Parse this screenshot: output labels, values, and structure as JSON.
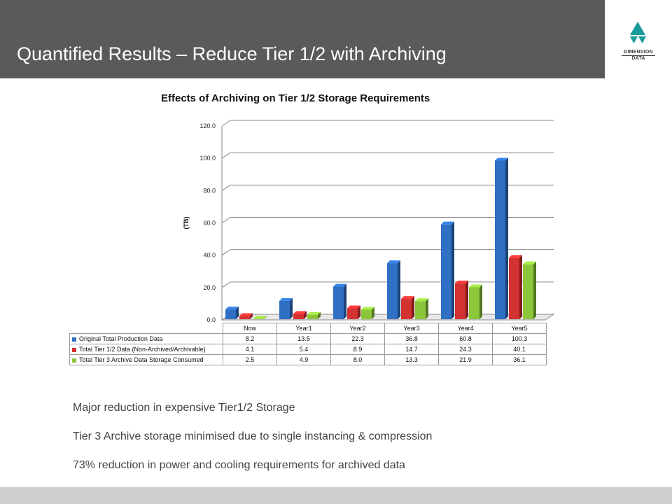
{
  "slide": {
    "title": "Quantified Results – Reduce Tier 1/2 with Archiving",
    "logo": {
      "line1": "DIMENSION",
      "line2": "DATA"
    },
    "bullets": [
      "Major reduction in expensive Tier1/2 Storage",
      "Tier 3 Archive storage minimised due to single instancing & compression",
      "73% reduction in power and cooling requirements for archived data"
    ]
  },
  "chart_data": {
    "type": "bar",
    "title": "Effects of Archiving on Tier 1/2 Storage Requirements",
    "ylabel": "(TB)",
    "xlabel": "",
    "ylim": [
      0,
      120
    ],
    "yticks": [
      "0.0",
      "20.0",
      "40.0",
      "60.0",
      "80.0",
      "100.0",
      "120.0"
    ],
    "grid": true,
    "legend": "data table below chart",
    "categories": [
      "Now",
      "Year1",
      "Year2",
      "Year3",
      "Year4",
      "Year5"
    ],
    "series": [
      {
        "name": "Original Total Production Data",
        "color": "#2f6fc4",
        "values": [
          8.2,
          13.5,
          22.3,
          36.8,
          60.8,
          100.3
        ],
        "labels": [
          "8.2",
          "13.5",
          "22.3",
          "36.8",
          "60.8",
          "100.3"
        ]
      },
      {
        "name": "Total Tier 1/2 Data (Non-Archived/Archivable)",
        "color": "#d43131",
        "values": [
          4.1,
          5.4,
          8.9,
          14.7,
          24.3,
          40.1
        ],
        "labels": [
          "4.1",
          "5.4",
          "8.9",
          "14.7",
          "24.3",
          "40.1"
        ]
      },
      {
        "name": "Total Tier 3 Archive Data Storage Consumed",
        "color": "#8cc63a",
        "values": [
          2.5,
          4.9,
          8.0,
          13.3,
          21.9,
          36.1
        ],
        "labels": [
          "2.5",
          "4.9",
          "8.0",
          "13.3",
          "21.9",
          "36.1"
        ]
      }
    ]
  }
}
